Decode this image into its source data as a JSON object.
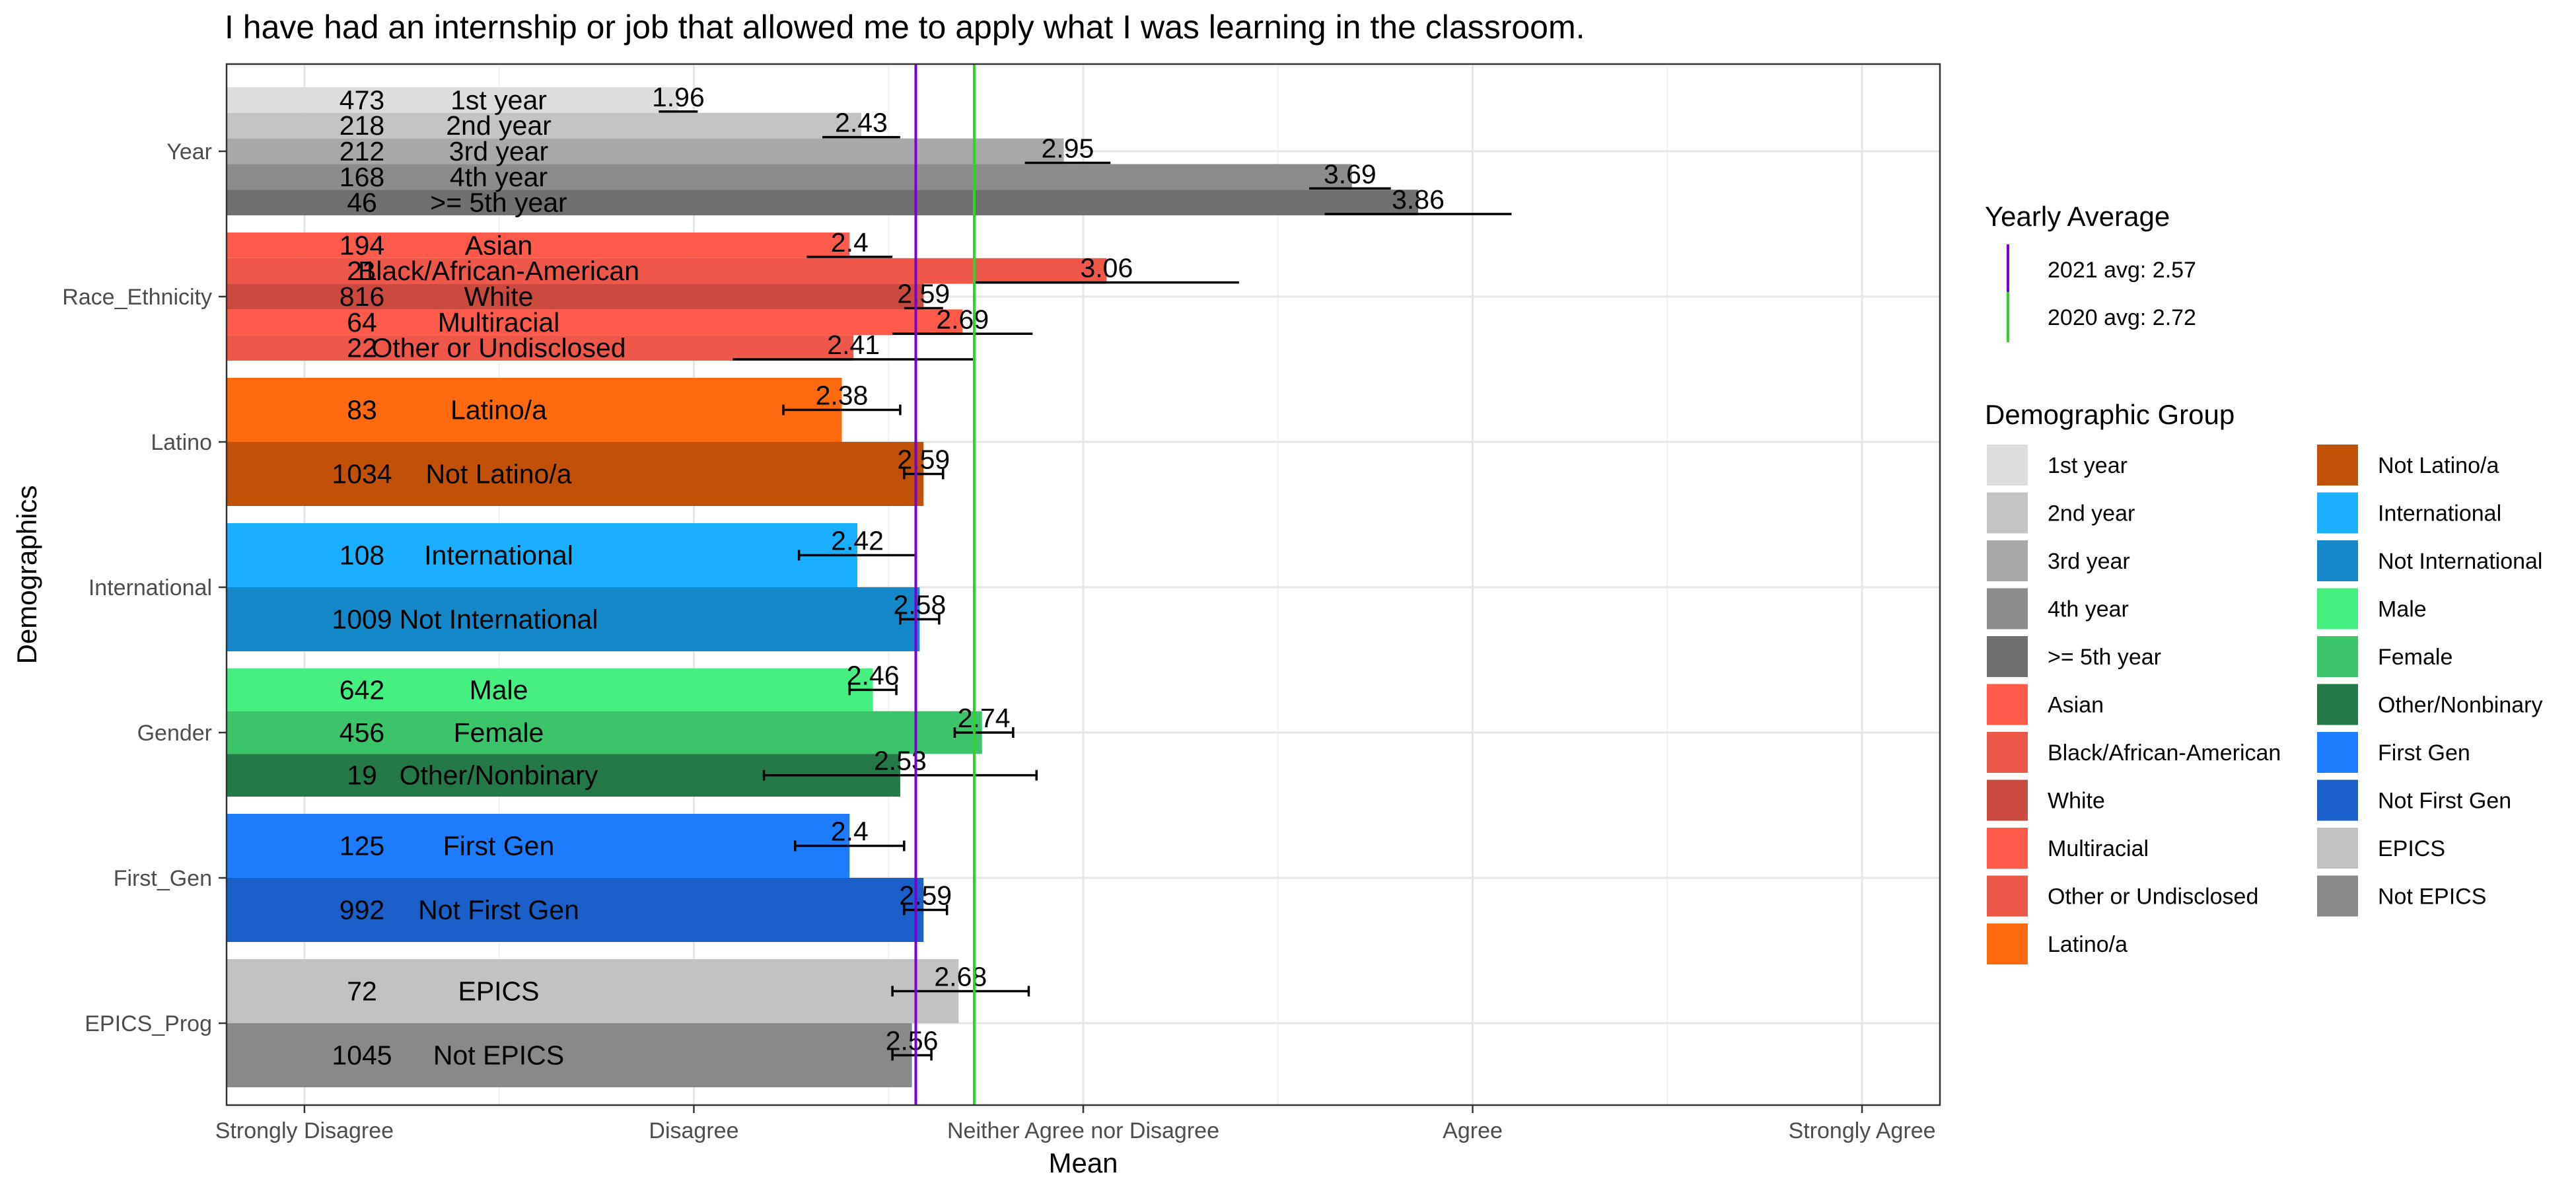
{
  "chart_data": {
    "type": "bar",
    "orientation": "horizontal",
    "title": "I have had an internship or job that allowed me to apply what I was learning in the classroom.",
    "xlabel": "Mean",
    "ylabel": "Demographics",
    "xlim": [
      0.8,
      5.2
    ],
    "x_ticks": [
      {
        "value": 1,
        "label": "Strongly Disagree"
      },
      {
        "value": 2,
        "label": "Disagree"
      },
      {
        "value": 3,
        "label": "Neither Agree nor Disagree"
      },
      {
        "value": 4,
        "label": "Agree"
      },
      {
        "value": 5,
        "label": "Strongly Agree"
      }
    ],
    "grid": true,
    "groups": [
      {
        "name": "Year",
        "bars": [
          {
            "label": "1st year",
            "n": "473",
            "mean": 1.96,
            "mean_label": "1.96",
            "err_low": 1.91,
            "err_high": 2.01,
            "color": "#DDDDDD"
          },
          {
            "label": "2nd year",
            "n": "218",
            "mean": 2.43,
            "mean_label": "2.43",
            "err_low": 2.33,
            "err_high": 2.53,
            "color": "#C4C4C4"
          },
          {
            "label": "3rd year",
            "n": "212",
            "mean": 2.95,
            "mean_label": "2.95",
            "err_low": 2.85,
            "err_high": 3.07,
            "color": "#A9A9A9"
          },
          {
            "label": "4th year",
            "n": "168",
            "mean": 3.69,
            "mean_label": "3.69",
            "err_low": 3.58,
            "err_high": 3.79,
            "color": "#8C8C8C"
          },
          {
            "label": ">= 5th year",
            "n": "46",
            "mean": 3.86,
            "mean_label": "3.86",
            "err_low": 3.62,
            "err_high": 4.1,
            "color": "#707070"
          }
        ]
      },
      {
        "name": "Race_Ethnicity",
        "bars": [
          {
            "label": "Asian",
            "n": "194",
            "mean": 2.4,
            "mean_label": "2.4",
            "err_low": 2.29,
            "err_high": 2.51,
            "color": "#FF5A4A"
          },
          {
            "label": "Black/African-American",
            "n": "21",
            "mean": 3.06,
            "mean_label": "3.06",
            "err_low": 2.72,
            "err_high": 3.4,
            "color": "#EE5848"
          },
          {
            "label": "White",
            "n": "816",
            "mean": 2.59,
            "mean_label": "2.59",
            "err_low": 2.54,
            "err_high": 2.64,
            "color": "#CB4A3E"
          },
          {
            "label": "Multiracial",
            "n": "64",
            "mean": 2.69,
            "mean_label": "2.69",
            "err_low": 2.51,
            "err_high": 2.87,
            "color": "#FF5A4A"
          },
          {
            "label": "Other or Undisclosed",
            "n": "22",
            "mean": 2.41,
            "mean_label": "2.41",
            "err_low": 2.1,
            "err_high": 2.72,
            "color": "#EE5848"
          }
        ]
      },
      {
        "name": "Latino",
        "bars": [
          {
            "label": "Latino/a",
            "n": "83",
            "mean": 2.38,
            "mean_label": "2.38",
            "err_low": 2.23,
            "err_high": 2.53,
            "color": "#FF6A0F"
          },
          {
            "label": "Not Latino/a",
            "n": "1034",
            "mean": 2.59,
            "mean_label": "2.59",
            "err_low": 2.54,
            "err_high": 2.64,
            "color": "#C05106"
          }
        ]
      },
      {
        "name": "International",
        "bars": [
          {
            "label": "International",
            "n": "108",
            "mean": 2.42,
            "mean_label": "2.42",
            "err_low": 2.27,
            "err_high": 2.57,
            "color": "#1AB0FF"
          },
          {
            "label": "Not International",
            "n": "1009",
            "mean": 2.58,
            "mean_label": "2.58",
            "err_low": 2.53,
            "err_high": 2.63,
            "color": "#1488C8"
          }
        ]
      },
      {
        "name": "Gender",
        "bars": [
          {
            "label": "Male",
            "n": "642",
            "mean": 2.46,
            "mean_label": "2.46",
            "err_low": 2.4,
            "err_high": 2.52,
            "color": "#45F080"
          },
          {
            "label": "Female",
            "n": "456",
            "mean": 2.74,
            "mean_label": "2.74",
            "err_low": 2.67,
            "err_high": 2.82,
            "color": "#3CC46A"
          },
          {
            "label": "Other/Nonbinary",
            "n": "19",
            "mean": 2.53,
            "mean_label": "2.53",
            "err_low": 2.18,
            "err_high": 2.88,
            "color": "#237A48"
          }
        ]
      },
      {
        "name": "First_Gen",
        "bars": [
          {
            "label": "First Gen",
            "n": "125",
            "mean": 2.4,
            "mean_label": "2.4",
            "err_low": 2.26,
            "err_high": 2.54,
            "color": "#1E7CFF"
          },
          {
            "label": "Not First Gen",
            "n": "992",
            "mean": 2.59,
            "mean_label": "2.59",
            "err_low": 2.54,
            "err_high": 2.65,
            "color": "#1A60C8"
          }
        ]
      },
      {
        "name": "EPICS_Prog",
        "bars": [
          {
            "label": "EPICS",
            "n": "72",
            "mean": 2.68,
            "mean_label": "2.68",
            "err_low": 2.51,
            "err_high": 2.86,
            "color": "#C2C2C2"
          },
          {
            "label": "Not EPICS",
            "n": "1045",
            "mean": 2.56,
            "mean_label": "2.56",
            "err_low": 2.51,
            "err_high": 2.61,
            "color": "#898989"
          }
        ]
      }
    ],
    "reference_lines": [
      {
        "label": "2021 avg: 2.57",
        "value": 2.57,
        "color": "#7B00D6"
      },
      {
        "label": "2020 avg: 2.72",
        "value": 2.72,
        "color": "#2ED12E"
      }
    ],
    "legend": {
      "placement": "right",
      "lines_title": "Yearly Average",
      "groups_title": "Demographic Group",
      "entries": [
        {
          "label": "1st year",
          "color": "#DDDDDD"
        },
        {
          "label": "2nd year",
          "color": "#C4C4C4"
        },
        {
          "label": "3rd year",
          "color": "#A9A9A9"
        },
        {
          "label": "4th year",
          "color": "#8C8C8C"
        },
        {
          "label": ">= 5th year",
          "color": "#707070"
        },
        {
          "label": "Asian",
          "color": "#FF5A4A"
        },
        {
          "label": "Black/African-American",
          "color": "#EE5848"
        },
        {
          "label": "White",
          "color": "#CB4A3E"
        },
        {
          "label": "Multiracial",
          "color": "#FF5A4A"
        },
        {
          "label": "Other or Undisclosed",
          "color": "#EE5848"
        },
        {
          "label": "Latino/a",
          "color": "#FF6A0F"
        },
        {
          "label": "Not Latino/a",
          "color": "#C05106"
        },
        {
          "label": "International",
          "color": "#1AB0FF"
        },
        {
          "label": "Not International",
          "color": "#1488C8"
        },
        {
          "label": "Male",
          "color": "#45F080"
        },
        {
          "label": "Female",
          "color": "#3CC46A"
        },
        {
          "label": "Other/Nonbinary",
          "color": "#237A48"
        },
        {
          "label": "First Gen",
          "color": "#1E7CFF"
        },
        {
          "label": "Not First Gen",
          "color": "#1A60C8"
        },
        {
          "label": "EPICS",
          "color": "#C2C2C2"
        },
        {
          "label": "Not EPICS",
          "color": "#898989"
        }
      ]
    }
  }
}
